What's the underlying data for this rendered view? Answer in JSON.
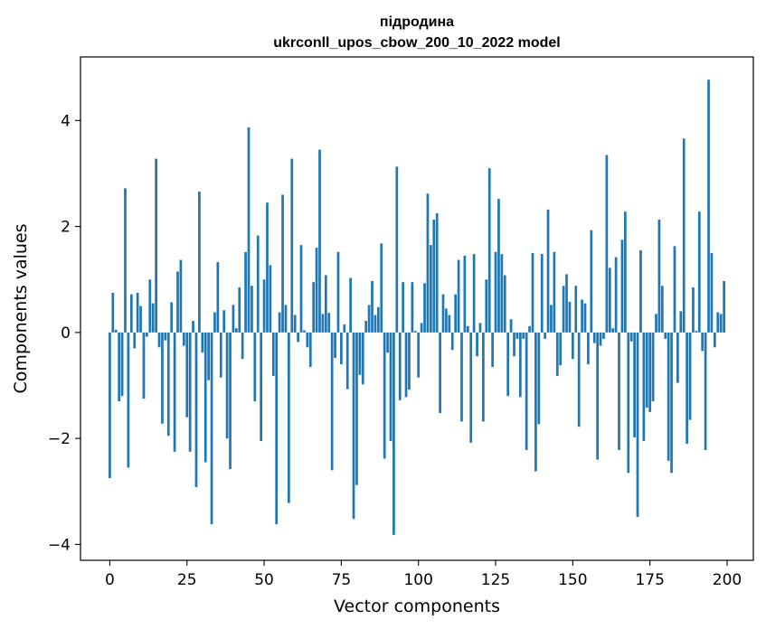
{
  "chart_data": {
    "type": "bar",
    "title": [
      "підродина",
      "ukrconll_upos_cbow_200_10_2022 model"
    ],
    "xlabel": "Vector components",
    "ylabel": "Components values",
    "xlim": [
      -9.5,
      208.5
    ],
    "ylim": [
      -4.3,
      5.2
    ],
    "xticks": [
      0,
      25,
      50,
      75,
      100,
      125,
      150,
      175,
      200
    ],
    "yticks": [
      -4,
      -2,
      0,
      2,
      4
    ],
    "ytick_labels": [
      "−4",
      "−2",
      "0",
      "2",
      "4"
    ],
    "grid": false,
    "bar_color": "#1f77b4",
    "x": [
      0,
      1,
      2,
      3,
      4,
      5,
      6,
      7,
      8,
      9,
      10,
      11,
      12,
      13,
      14,
      15,
      16,
      17,
      18,
      19,
      20,
      21,
      22,
      23,
      24,
      25,
      26,
      27,
      28,
      29,
      30,
      31,
      32,
      33,
      34,
      35,
      36,
      37,
      38,
      39,
      40,
      41,
      42,
      43,
      44,
      45,
      46,
      47,
      48,
      49,
      50,
      51,
      52,
      53,
      54,
      55,
      56,
      57,
      58,
      59,
      60,
      61,
      62,
      63,
      64,
      65,
      66,
      67,
      68,
      69,
      70,
      71,
      72,
      73,
      74,
      75,
      76,
      77,
      78,
      79,
      80,
      81,
      82,
      83,
      84,
      85,
      86,
      87,
      88,
      89,
      90,
      91,
      92,
      93,
      94,
      95,
      96,
      97,
      98,
      99,
      100,
      101,
      102,
      103,
      104,
      105,
      106,
      107,
      108,
      109,
      110,
      111,
      112,
      113,
      114,
      115,
      116,
      117,
      118,
      119,
      120,
      121,
      122,
      123,
      124,
      125,
      126,
      127,
      128,
      129,
      130,
      131,
      132,
      133,
      134,
      135,
      136,
      137,
      138,
      139,
      140,
      141,
      142,
      143,
      144,
      145,
      146,
      147,
      148,
      149,
      150,
      151,
      152,
      153,
      154,
      155,
      156,
      157,
      158,
      159,
      160,
      161,
      162,
      163,
      164,
      165,
      166,
      167,
      168,
      169,
      170,
      171,
      172,
      173,
      174,
      175,
      176,
      177,
      178,
      179,
      180,
      181,
      182,
      183,
      184,
      185,
      186,
      187,
      188,
      189,
      190,
      191,
      192,
      193,
      194,
      195,
      196,
      197,
      198,
      199
    ],
    "values": [
      -2.75,
      0.75,
      0.05,
      -1.3,
      -1.2,
      2.72,
      -2.55,
      0.72,
      -0.3,
      0.75,
      0.5,
      -1.25,
      -0.08,
      1.0,
      0.55,
      3.28,
      -0.28,
      -1.72,
      -0.15,
      -1.95,
      0.57,
      -2.25,
      1.15,
      1.37,
      -0.25,
      -1.6,
      -2.25,
      0.22,
      -2.92,
      2.66,
      -0.38,
      -2.45,
      -0.9,
      -3.62,
      0.38,
      1.33,
      -0.85,
      0.42,
      -2.0,
      -2.58,
      0.52,
      0.08,
      0.85,
      -0.5,
      1.52,
      3.87,
      0.88,
      -1.3,
      1.83,
      -2.05,
      1.0,
      2.45,
      1.27,
      -0.82,
      -3.62,
      0.38,
      2.6,
      0.52,
      -3.22,
      3.28,
      0.33,
      -0.18,
      1.65,
      0.04,
      -0.28,
      -0.65,
      0.95,
      1.6,
      3.45,
      0.35,
      1.08,
      0.37,
      -2.6,
      -0.48,
      1.52,
      -0.6,
      0.15,
      -1.07,
      1.03,
      -3.52,
      -2.88,
      -0.8,
      -0.98,
      0.22,
      0.52,
      0.97,
      0.33,
      0.48,
      1.68,
      -2.38,
      -0.38,
      -2.05,
      -3.82,
      3.13,
      -1.28,
      0.95,
      -1.22,
      -1.08,
      0.95,
      0.03,
      -0.85,
      0.18,
      0.93,
      2.62,
      1.65,
      2.13,
      2.25,
      -1.52,
      0.72,
      0.45,
      0.33,
      -0.33,
      0.72,
      1.37,
      -1.68,
      1.45,
      0.12,
      -2.08,
      1.48,
      -0.45,
      0.18,
      -1.68,
      1.0,
      3.1,
      -0.65,
      1.52,
      2.52,
      1.48,
      1.08,
      -1.2,
      0.25,
      -0.45,
      -0.12,
      -1.22,
      -0.12,
      -2.22,
      0.12,
      1.5,
      -2.62,
      -1.73,
      1.48,
      -0.12,
      2.32,
      0.52,
      1.52,
      -0.82,
      -0.62,
      0.88,
      1.1,
      0.58,
      -0.5,
      0.88,
      -1.78,
      0.62,
      0.55,
      -0.6,
      1.93,
      -0.2,
      -2.4,
      -0.25,
      -0.12,
      3.35,
      1.22,
      0.08,
      1.42,
      -2.22,
      1.75,
      2.28,
      -2.65,
      -0.17,
      -1.98,
      -3.48,
      1.55,
      -2.05,
      -1.42,
      -1.5,
      -1.3,
      0.35,
      2.13,
      0.88,
      -0.12,
      -2.42,
      -2.65,
      1.63,
      -0.95,
      0.4,
      3.66,
      -2.1,
      -1.65,
      0.85,
      0.03,
      2.28,
      -0.35,
      -2.22,
      4.77,
      1.5,
      -0.28,
      0.38,
      0.35,
      0.97
    ]
  }
}
